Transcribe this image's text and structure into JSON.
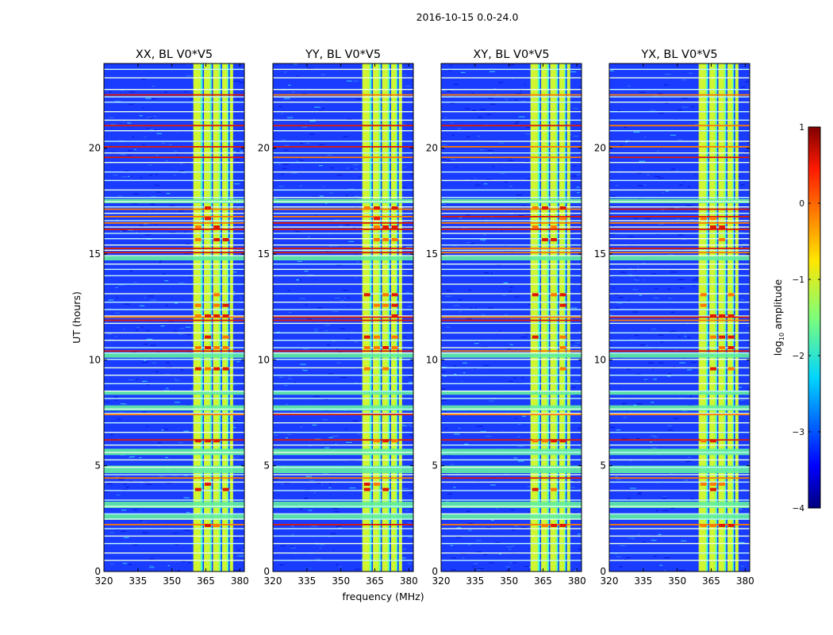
{
  "figure": {
    "suptitle": "2016-10-15 0.0-24.0",
    "xlabel": "frequency (MHz)",
    "ylabel": "UT (hours)"
  },
  "colors": {
    "background_low": "#0a1dd6",
    "background_mid": "#1a3cff",
    "band_cyan": "#33ffdd",
    "band_green": "#9cff5a",
    "band_yellow": "#f2f500",
    "hot_orange": "#ff7a00",
    "hot_red": "#e01a00",
    "frame": "#000000"
  },
  "colorbar": {
    "label_prefix": "log",
    "label_subscript": "10",
    "label_suffix": " amplitude",
    "range": [
      -4,
      1
    ],
    "ticks": [
      {
        "value": 1,
        "label": "1"
      },
      {
        "value": 0,
        "label": "0"
      },
      {
        "value": -1,
        "label": "−1"
      },
      {
        "value": -2,
        "label": "−2"
      },
      {
        "value": -3,
        "label": "−3"
      },
      {
        "value": -4,
        "label": "−4"
      }
    ]
  },
  "chart_data": [
    {
      "type": "heatmap",
      "title": "XX, BL V0*V5",
      "xlabel": "frequency (MHz)",
      "ylabel": "UT (hours)",
      "xlim": [
        320,
        382
      ],
      "ylim": [
        0,
        24
      ],
      "xticks": [
        320,
        335,
        350,
        365,
        380
      ],
      "yticks": [
        0,
        5,
        10,
        15,
        20
      ],
      "colorbar_label": "log10 amplitude",
      "colorbar_range": [
        -4,
        1
      ],
      "high_amplitude_band_MHz": [
        359.5,
        377
      ]
    },
    {
      "type": "heatmap",
      "title": "YY, BL V0*V5",
      "xlabel": "frequency (MHz)",
      "ylabel": "UT (hours)",
      "xlim": [
        320,
        382
      ],
      "ylim": [
        0,
        24
      ],
      "xticks": [
        320,
        335,
        350,
        365,
        380
      ],
      "yticks": [
        0,
        5,
        10,
        15,
        20
      ],
      "colorbar_label": "log10 amplitude",
      "colorbar_range": [
        -4,
        1
      ],
      "high_amplitude_band_MHz": [
        359.5,
        377
      ]
    },
    {
      "type": "heatmap",
      "title": "XY, BL V0*V5",
      "xlabel": "frequency (MHz)",
      "ylabel": "UT (hours)",
      "xlim": [
        320,
        382
      ],
      "ylim": [
        0,
        24
      ],
      "xticks": [
        320,
        335,
        350,
        365,
        380
      ],
      "yticks": [
        0,
        5,
        10,
        15,
        20
      ],
      "colorbar_label": "log10 amplitude",
      "colorbar_range": [
        -4,
        1
      ],
      "high_amplitude_band_MHz": [
        359.5,
        377
      ]
    },
    {
      "type": "heatmap",
      "title": "YX, BL V0*V5",
      "xlabel": "frequency (MHz)",
      "ylabel": "UT (hours)",
      "xlim": [
        320,
        382
      ],
      "ylim": [
        0,
        24
      ],
      "xticks": [
        320,
        335,
        350,
        365,
        380
      ],
      "yticks": [
        0,
        5,
        10,
        15,
        20
      ],
      "colorbar_label": "log10 amplitude",
      "colorbar_range": [
        -4,
        1
      ],
      "high_amplitude_band_MHz": [
        359.5,
        377
      ]
    }
  ]
}
